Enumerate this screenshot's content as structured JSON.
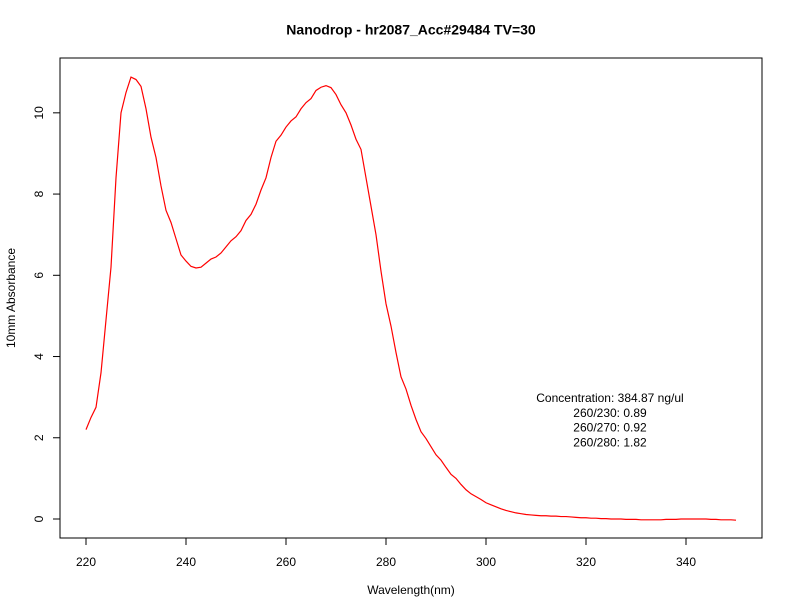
{
  "chart_data": {
    "type": "line",
    "title": "Nanodrop - hr2087_Acc#29484 TV=30",
    "x_label": "Wavelength(nm)",
    "y_label": "10mm Absorbance",
    "annotations": [
      "Concentration: 384.87 ng/ul",
      "260/230: 0.89",
      "260/270: 0.92",
      "260/280: 1.82"
    ],
    "color": "#ff0000",
    "x": [
      220,
      221,
      222,
      223,
      224,
      225,
      226,
      227,
      228,
      229,
      230,
      231,
      232,
      233,
      234,
      235,
      236,
      237,
      238,
      239,
      240,
      241,
      242,
      243,
      244,
      245,
      246,
      247,
      248,
      249,
      250,
      251,
      252,
      253,
      254,
      255,
      256,
      257,
      258,
      259,
      260,
      261,
      262,
      263,
      264,
      265,
      266,
      267,
      268,
      269,
      270,
      271,
      272,
      273,
      274,
      275,
      276,
      277,
      278,
      279,
      280,
      281,
      282,
      283,
      284,
      285,
      286,
      287,
      288,
      289,
      290,
      291,
      292,
      293,
      294,
      295,
      296,
      297,
      298,
      299,
      300,
      301,
      302,
      303,
      304,
      305,
      306,
      307,
      308,
      309,
      310,
      311,
      312,
      313,
      314,
      315,
      316,
      317,
      318,
      319,
      320,
      321,
      322,
      323,
      324,
      325,
      326,
      327,
      328,
      329,
      330,
      331,
      332,
      333,
      334,
      335,
      336,
      337,
      338,
      339,
      340,
      341,
      342,
      343,
      344,
      345,
      346,
      347,
      348,
      349,
      350
    ],
    "values": [
      2.2,
      2.5,
      2.75,
      3.6,
      4.9,
      6.2,
      8.4,
      10.0,
      10.5,
      10.88,
      10.82,
      10.65,
      10.1,
      9.4,
      8.9,
      8.2,
      7.6,
      7.3,
      6.9,
      6.5,
      6.35,
      6.22,
      6.18,
      6.2,
      6.3,
      6.4,
      6.45,
      6.55,
      6.7,
      6.85,
      6.95,
      7.1,
      7.35,
      7.5,
      7.75,
      8.1,
      8.4,
      8.9,
      9.3,
      9.45,
      9.65,
      9.8,
      9.9,
      10.1,
      10.25,
      10.35,
      10.55,
      10.63,
      10.67,
      10.62,
      10.45,
      10.2,
      10.0,
      9.7,
      9.35,
      9.1,
      8.4,
      7.7,
      7.0,
      6.1,
      5.3,
      4.75,
      4.1,
      3.5,
      3.2,
      2.8,
      2.45,
      2.15,
      1.98,
      1.78,
      1.58,
      1.45,
      1.27,
      1.1,
      1.0,
      0.85,
      0.72,
      0.62,
      0.55,
      0.48,
      0.4,
      0.35,
      0.3,
      0.25,
      0.21,
      0.18,
      0.15,
      0.13,
      0.11,
      0.1,
      0.09,
      0.08,
      0.08,
      0.07,
      0.07,
      0.06,
      0.06,
      0.05,
      0.04,
      0.03,
      0.03,
      0.02,
      0.02,
      0.01,
      0.01,
      0.0,
      0.0,
      0.0,
      -0.01,
      -0.01,
      -0.01,
      -0.02,
      -0.02,
      -0.02,
      -0.02,
      -0.02,
      -0.01,
      -0.01,
      -0.01,
      0.0,
      0.0,
      0.0,
      0.0,
      0.0,
      0.0,
      -0.01,
      -0.01,
      -0.02,
      -0.02,
      -0.02,
      -0.03
    ],
    "xlim": [
      214.8,
      355.2
    ],
    "ylim": [
      -0.468,
      11.35
    ],
    "xticks": [
      220,
      240,
      260,
      280,
      300,
      320,
      340
    ],
    "yticks": [
      0,
      2,
      4,
      6,
      8,
      10
    ]
  }
}
